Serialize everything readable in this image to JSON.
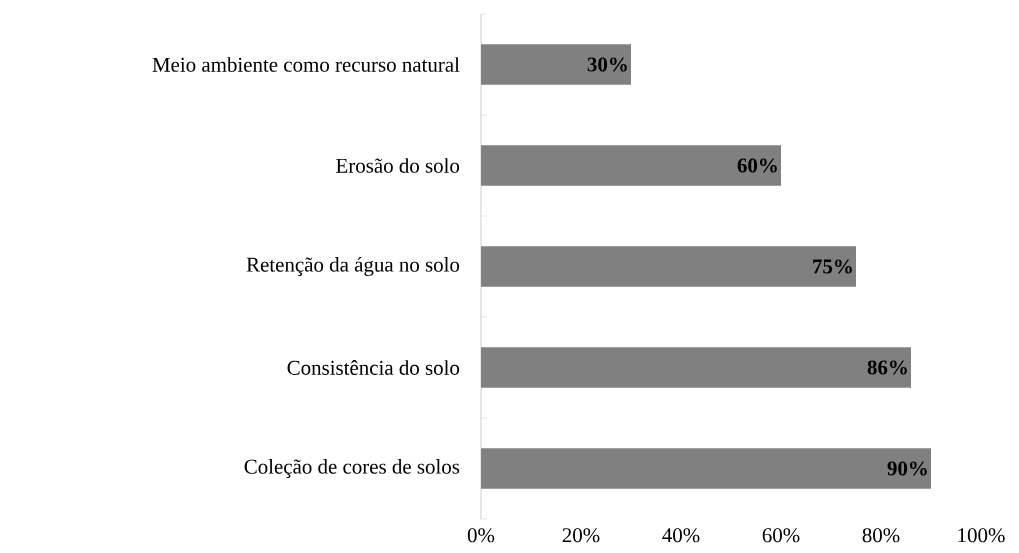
{
  "chart_data": {
    "type": "bar",
    "orientation": "horizontal",
    "categories": [
      "Meio ambiente como recurso natural",
      "Erosão do solo",
      "Retenção da água no solo",
      "Consistência do solo",
      "Coleção de cores de solos"
    ],
    "values": [
      30,
      60,
      75,
      86,
      90
    ],
    "value_labels": [
      "30%",
      "60%",
      "75%",
      "86%",
      "90%"
    ],
    "color": "#808080",
    "xlim": [
      0,
      100
    ],
    "xticks": [
      {
        "value": 0,
        "label": "0%"
      },
      {
        "value": 20,
        "label": "20%"
      },
      {
        "value": 40,
        "label": "40%"
      },
      {
        "value": 60,
        "label": "60%"
      },
      {
        "value": 80,
        "label": "80%"
      },
      {
        "value": 100,
        "label": "100%"
      }
    ],
    "grid": false
  }
}
